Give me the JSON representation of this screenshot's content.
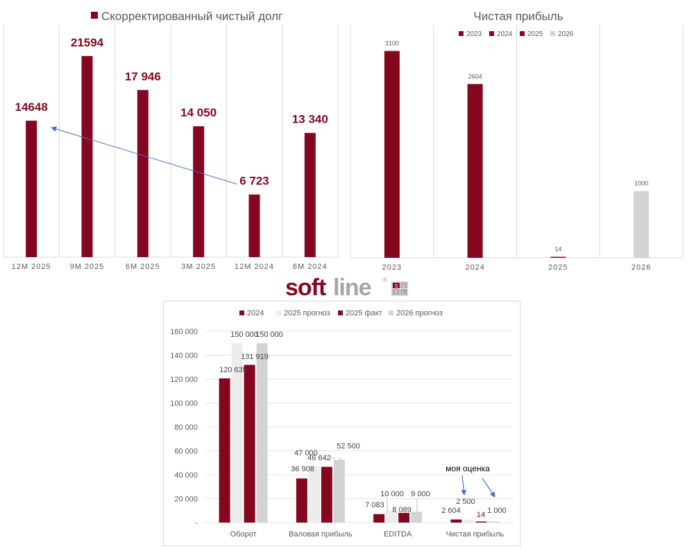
{
  "charts": [
    {
      "type": "bar",
      "title": "Скорректированный чистый долг",
      "categories": [
        "12M 2025",
        "9M 2025",
        "6M 2025",
        "3M 2025",
        "12M 2024",
        "6M 2024"
      ],
      "series": [
        {
          "name": "Скорректированный чистый долг",
          "values": [
            14648,
            21594,
            17946,
            14050,
            6723,
            13340
          ],
          "color": "#85071f"
        }
      ],
      "data_labels": [
        "14648",
        "21594",
        "17 946",
        "14 050",
        "6 723",
        "13 340"
      ],
      "annotation": {
        "type": "arrow",
        "from_category": "12M 2024",
        "to_category": "12M 2025",
        "color": "#4472c4"
      },
      "grid": "vertical",
      "legend": "top"
    },
    {
      "type": "bar",
      "title": "Чистая прибыль",
      "categories": [
        "2023",
        "2024",
        "2025",
        "2026"
      ],
      "series": [
        {
          "name": "2023",
          "color": "#85071f"
        },
        {
          "name": "2024",
          "color": "#85071f"
        },
        {
          "name": "2025",
          "color": "#85071f"
        },
        {
          "name": "2026",
          "color": "#d3d3d3"
        }
      ],
      "values": [
        3100,
        2604,
        14,
        1000
      ],
      "bar_colors": [
        "#85071f",
        "#85071f",
        "#85071f",
        "#d3d3d3"
      ],
      "grid": "vertical",
      "legend": "top"
    },
    {
      "type": "bar",
      "title": "",
      "categories": [
        "Оборот",
        "Валовая прибыль",
        "EDITDA",
        "Чистая прибыль"
      ],
      "series": [
        {
          "name": "2024",
          "color": "#85071f",
          "values": [
            120635,
            36908,
            7083,
            2604
          ],
          "labels": [
            "120 635",
            "36 908",
            "7 083",
            "2 604"
          ]
        },
        {
          "name": "2025 прогноз",
          "color": "#ececec",
          "values": [
            150000,
            47000,
            10000,
            2500
          ],
          "labels": [
            "150 000",
            "47 000",
            "10 000",
            "2 500"
          ]
        },
        {
          "name": "2025 факт",
          "color": "#85071f",
          "values": [
            131919,
            46642,
            8089,
            14
          ],
          "labels": [
            "131 919",
            "46 642",
            "8 089",
            "14"
          ]
        },
        {
          "name": "2026 прогноз",
          "color": "#d3d3d3",
          "values": [
            150000,
            52500,
            9000,
            1000
          ],
          "labels": [
            "150 000",
            "52 500",
            "9 000",
            "1 000"
          ]
        }
      ],
      "ylim": [
        0,
        160000
      ],
      "yticks": [
        "-",
        "20 000",
        "40 000",
        "60 000",
        "80 000",
        "100 000",
        "120 000",
        "140 000",
        "160 000"
      ],
      "grid": "horizontal",
      "legend": "top",
      "annotation": {
        "text": "моя оценка",
        "color": "#4472c4"
      }
    }
  ],
  "logo": {
    "text_soft": "soft",
    "text_line": "line",
    "mark": "®",
    "box_letters": [
      "S",
      "O",
      "F",
      "L"
    ]
  }
}
